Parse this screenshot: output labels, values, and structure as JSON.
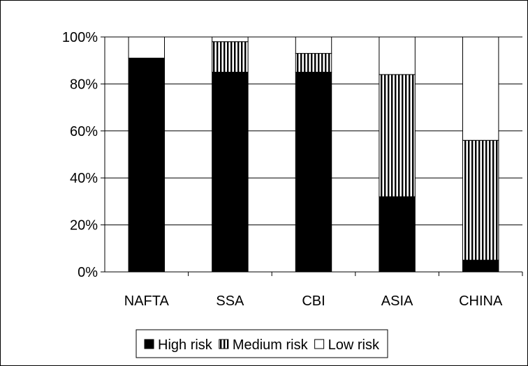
{
  "chart_data": {
    "type": "bar",
    "stacked": true,
    "normalized": true,
    "categories": [
      "NAFTA",
      "SSA",
      "CBI",
      "ASIA",
      "CHINA"
    ],
    "series": [
      {
        "name": "High risk",
        "values": [
          91,
          85,
          85,
          32,
          5
        ],
        "fill": "solid-black"
      },
      {
        "name": "Medium risk",
        "values": [
          0,
          13,
          8,
          52,
          51
        ],
        "fill": "vertical-stripes"
      },
      {
        "name": "Low risk",
        "values": [
          9,
          2,
          7,
          16,
          44
        ],
        "fill": "white"
      }
    ],
    "ylim": [
      0,
      100
    ],
    "yticks": [
      "0%",
      "20%",
      "40%",
      "60%",
      "80%",
      "100%"
    ],
    "grid": true,
    "legend_position": "bottom",
    "colors": {
      "bar_outline": "#000000",
      "high": "#000000",
      "low": "#ffffff",
      "stripe": "#000000",
      "stripe_bg": "#ffffff"
    }
  }
}
